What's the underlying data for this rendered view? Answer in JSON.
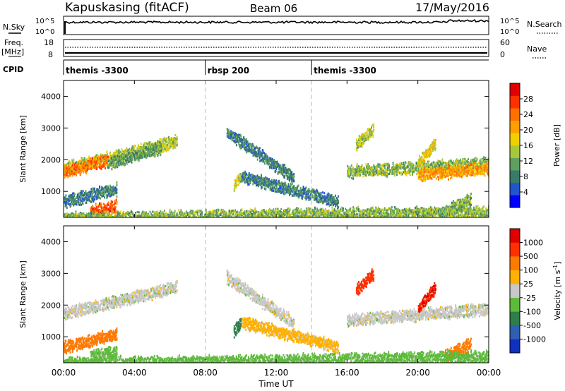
{
  "header": {
    "station": "Kapuskasing (fitACF)",
    "beam": "Beam 06",
    "date": "17/May/2016"
  },
  "top_panels": {
    "nsky_label": "N.Sky",
    "nsearch_label": "N.Search",
    "noise_ticks_left": [
      "10^5",
      "10^0"
    ],
    "noise_ticks_right": [
      "10^5",
      "10^0"
    ],
    "freq_label": "Freq.",
    "freq_unit": "[MHz]",
    "freq_ticks": [
      "18",
      "8"
    ],
    "nave_label": "Nave",
    "nave_ticks": [
      "60",
      "0"
    ],
    "cpid_label": "CPID",
    "cpid_segments": [
      {
        "start_hour": 0,
        "label": "themis -3300"
      },
      {
        "start_hour": 8,
        "label": "rbsp 200"
      },
      {
        "start_hour": 14,
        "label": "themis -3300"
      }
    ]
  },
  "chart_data": [
    {
      "type": "heatmap",
      "title": "",
      "xlabel": "Time UT",
      "ylabel": "Slant Range [km]",
      "xlim": [
        0,
        24
      ],
      "ylim": [
        180,
        4500
      ],
      "x_ticks": [
        "00:00",
        "04:00",
        "08:00",
        "12:00",
        "16:00",
        "20:00",
        "00:00"
      ],
      "y_ticks": [
        "1000",
        "2000",
        "3000",
        "4000"
      ],
      "colorbar": {
        "label": "Power [dB]",
        "ticks": [
          "4",
          "8",
          "12",
          "16",
          "20",
          "24",
          "28"
        ],
        "range": [
          0,
          30
        ],
        "colors": [
          "#0000ff",
          "#2255cc",
          "#3a7a6a",
          "#5fa05f",
          "#a8c83c",
          "#f0d000",
          "#ffa000",
          "#ff7000",
          "#ff3000",
          "#e00000"
        ]
      },
      "bands": [
        {
          "t0": 0.0,
          "t1": 6.4,
          "r0": 1750,
          "r1": 2600,
          "v": 14
        },
        {
          "t0": 0.0,
          "t1": 2.5,
          "r0": 1650,
          "r1": 2000,
          "v": 22
        },
        {
          "t0": 2.5,
          "t1": 5.5,
          "r0": 1900,
          "r1": 2400,
          "v": 10
        },
        {
          "t0": 0.0,
          "t1": 3.0,
          "r0": 700,
          "r1": 1100,
          "v": 8
        },
        {
          "t0": 1.5,
          "t1": 3.0,
          "r0": 400,
          "r1": 550,
          "v": 24
        },
        {
          "t0": 9.2,
          "t1": 13.0,
          "r0": 2900,
          "r1": 1450,
          "v": 8
        },
        {
          "t0": 10.0,
          "t1": 15.5,
          "r0": 1500,
          "r1": 700,
          "v": 8
        },
        {
          "t0": 9.6,
          "t1": 10.0,
          "r0": 1200,
          "r1": 1500,
          "v": 15
        },
        {
          "t0": 16.0,
          "t1": 24.0,
          "r0": 1650,
          "r1": 1900,
          "v": 12
        },
        {
          "t0": 20.0,
          "t1": 24.0,
          "r0": 1550,
          "r1": 1750,
          "v": 20
        },
        {
          "t0": 16.5,
          "t1": 17.5,
          "r0": 2500,
          "r1": 3000,
          "v": 14
        },
        {
          "t0": 20.0,
          "t1": 21.0,
          "r0": 1900,
          "r1": 2600,
          "v": 16
        },
        {
          "t0": 21.5,
          "t1": 23.0,
          "r0": 400,
          "r1": 800,
          "v": 12
        },
        {
          "t0": 0.0,
          "t1": 24.0,
          "r0": 180,
          "r1": 380,
          "v": 12
        }
      ]
    },
    {
      "type": "heatmap",
      "title": "",
      "xlabel": "Time UT",
      "ylabel": "Slant Range [km]",
      "xlim": [
        0,
        24
      ],
      "ylim": [
        180,
        4500
      ],
      "x_ticks": [
        "00:00",
        "04:00",
        "08:00",
        "12:00",
        "16:00",
        "20:00",
        "00:00"
      ],
      "y_ticks": [
        "1000",
        "2000",
        "3000",
        "4000"
      ],
      "colorbar": {
        "label": "Velocity [m s^-1]",
        "ticks": [
          "1000",
          "500",
          "100",
          "25",
          "-25",
          "-100",
          "-500",
          "-1000"
        ],
        "colors": [
          "#1030c0",
          "#2f5fb0",
          "#2e7d4a",
          "#5dbb3a",
          "#c8c8c8",
          "#ffb000",
          "#ff7a00",
          "#ff3000",
          "#e00000"
        ]
      },
      "bands": [
        {
          "t0": 0.0,
          "t1": 6.4,
          "r0": 1750,
          "r1": 2600,
          "v": 0
        },
        {
          "t0": 0.0,
          "t1": 3.0,
          "r0": 700,
          "r1": 1100,
          "v": -300
        },
        {
          "t0": 1.5,
          "t1": 3.0,
          "r0": 400,
          "r1": 550,
          "v": 50
        },
        {
          "t0": 9.2,
          "t1": 13.0,
          "r0": 2900,
          "r1": 1450,
          "v": 0
        },
        {
          "t0": 10.0,
          "t1": 15.5,
          "r0": 1500,
          "r1": 700,
          "v": -50
        },
        {
          "t0": 9.6,
          "t1": 10.0,
          "r0": 1200,
          "r1": 1500,
          "v": 200
        },
        {
          "t0": 16.0,
          "t1": 24.0,
          "r0": 1550,
          "r1": 1900,
          "v": 0
        },
        {
          "t0": 16.5,
          "t1": 17.5,
          "r0": 2500,
          "r1": 3000,
          "v": -600
        },
        {
          "t0": 20.0,
          "t1": 21.0,
          "r0": 1900,
          "r1": 2600,
          "v": -1000
        },
        {
          "t0": 21.5,
          "t1": 23.0,
          "r0": 400,
          "r1": 800,
          "v": -300
        },
        {
          "t0": 0.0,
          "t1": 24.0,
          "r0": 180,
          "r1": 380,
          "v": 50
        }
      ]
    }
  ]
}
